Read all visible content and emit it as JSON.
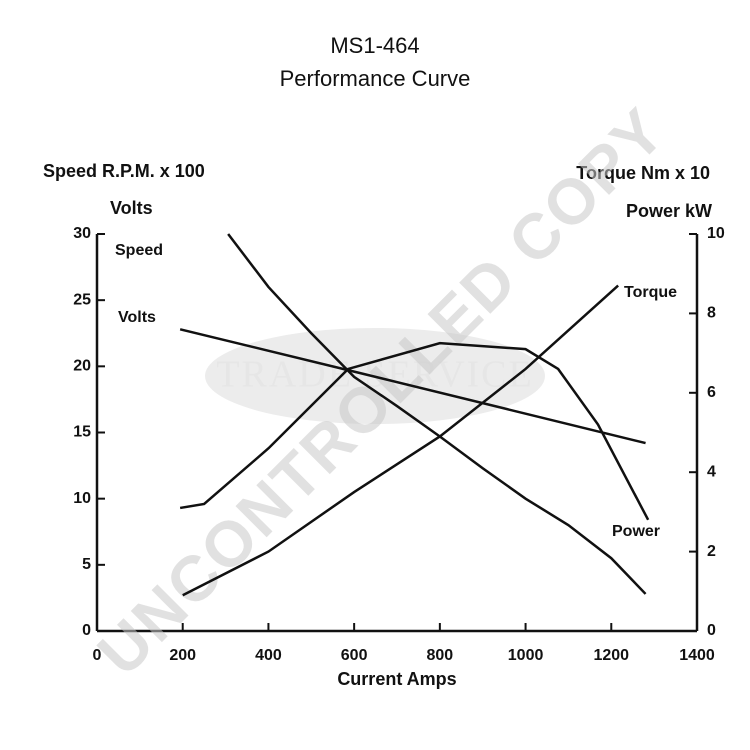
{
  "chart_data": {
    "type": "line",
    "title": "MS1-464",
    "subtitle": "Performance Curve",
    "xlabel": "Current Amps",
    "ylabel": [
      "Speed R.P.M. x 100",
      "Volts"
    ],
    "y2label": [
      "Torque Nm x 10",
      "Power kW"
    ],
    "xlim": [
      0,
      1400
    ],
    "xticks": [
      0,
      200,
      400,
      600,
      800,
      1000,
      1200,
      1400
    ],
    "ylim": [
      0,
      30
    ],
    "yticks": [
      0,
      5,
      10,
      15,
      20,
      25,
      30
    ],
    "y2lim": [
      0,
      10
    ],
    "y2ticks": [
      0,
      2,
      4,
      6,
      8,
      10
    ],
    "series": [
      {
        "name": "Speed",
        "color": "#111111",
        "axis": "y",
        "x": [
          306,
          400,
          500,
          600,
          700,
          800,
          900,
          1000,
          1100,
          1200,
          1280
        ],
        "values": [
          30,
          26,
          22.5,
          19.2,
          17,
          14.7,
          12.3,
          10,
          8,
          5.5,
          2.8
        ]
      },
      {
        "name": "Volts",
        "color": "#111111",
        "axis": "y",
        "x": [
          194,
          600,
          1280
        ],
        "values": [
          22.8,
          19.6,
          14.2
        ]
      },
      {
        "name": "Torque",
        "color": "#111111",
        "axis": "y2",
        "x": [
          200,
          400,
          600,
          800,
          1000,
          1216
        ],
        "values": [
          0.9,
          2.0,
          3.5,
          4.9,
          6.6,
          8.7
        ]
      },
      {
        "name": "Power",
        "color": "#111111",
        "axis": "y2",
        "x": [
          194,
          250,
          400,
          586,
          800,
          1000,
          1076,
          1169,
          1286
        ],
        "values": [
          3.1,
          3.2,
          4.6,
          6.6,
          7.25,
          7.1,
          6.6,
          5.2,
          2.8
        ]
      }
    ],
    "watermark": [
      "TRADE SERVICE",
      "UNCONTROLLED COPY"
    ]
  }
}
